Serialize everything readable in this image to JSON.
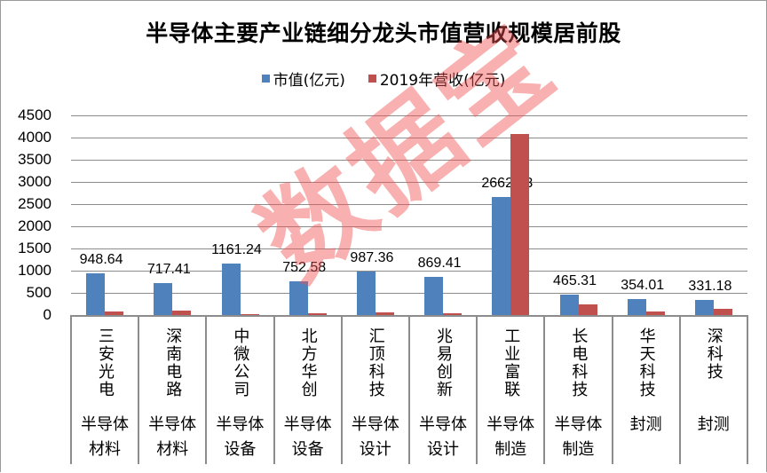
{
  "title": "半导体主要产业链细分龙头市值营收规模居前股",
  "legend": {
    "items": [
      {
        "label": "市值(亿元)",
        "color": "#4f81bd"
      },
      {
        "label": "2019年营收(亿元)",
        "color": "#c0504d"
      }
    ]
  },
  "watermark": "数据宝",
  "chart_data": {
    "type": "bar",
    "title": "半导体主要产业链细分龙头市值营收规模居前股",
    "xlabel": "",
    "ylabel": "",
    "ylim": [
      0,
      4500
    ],
    "yticks": [
      0,
      500,
      1000,
      1500,
      2000,
      2500,
      3000,
      3500,
      4000,
      4500
    ],
    "grid": true,
    "legend_position": "top",
    "categories": [
      "三安光电",
      "深南电路",
      "中微公司",
      "北方华创",
      "汇顶科技",
      "兆易创新",
      "工业富联",
      "长电科技",
      "华天科技",
      "深科技"
    ],
    "category_groups": [
      "半导体材料",
      "半导体材料",
      "半导体设备",
      "半导体设备",
      "半导体设计",
      "半导体设计",
      "半导体制造",
      "半导体制造",
      "封测",
      "封测"
    ],
    "series": [
      {
        "name": "市值(亿元)",
        "color": "#4f81bd",
        "values": [
          948.64,
          717.41,
          1161.24,
          752.58,
          987.36,
          869.41,
          2662.53,
          465.31,
          354.01,
          331.18
        ],
        "data_labels": [
          "948.64",
          "717.41",
          "1161.24",
          "752.58",
          "987.36",
          "869.41",
          "2662.53",
          "465.31",
          "354.01",
          "331.18"
        ]
      },
      {
        "name": "2019年营收(亿元)",
        "color": "#c0504d",
        "values": [
          74,
          105,
          19,
          40,
          64,
          32,
          4087,
          235,
          81,
          135
        ]
      }
    ]
  },
  "axis": {
    "yticks": [
      "4500",
      "4000",
      "3500",
      "3000",
      "2500",
      "2000",
      "1500",
      "1000",
      "500",
      "0"
    ]
  },
  "categories": [
    {
      "name": "三安光电",
      "group_line1": "半导体",
      "group_line2": "材料"
    },
    {
      "name": "深南电路",
      "group_line1": "半导体",
      "group_line2": "材料"
    },
    {
      "name": "中微公司",
      "group_line1": "半导体",
      "group_line2": "设备"
    },
    {
      "name": "北方华创",
      "group_line1": "半导体",
      "group_line2": "设备"
    },
    {
      "name": "汇顶科技",
      "group_line1": "半导体",
      "group_line2": "设计"
    },
    {
      "name": "兆易创新",
      "group_line1": "半导体",
      "group_line2": "设计"
    },
    {
      "name": "工业富联",
      "group_line1": "半导体",
      "group_line2": "制造"
    },
    {
      "name": "长电科技",
      "group_line1": "半导体",
      "group_line2": "制造"
    },
    {
      "name": "华天科技",
      "group_line1": "封测",
      "group_line2": ""
    },
    {
      "name": "深科技",
      "group_line1": "封测",
      "group_line2": ""
    }
  ]
}
